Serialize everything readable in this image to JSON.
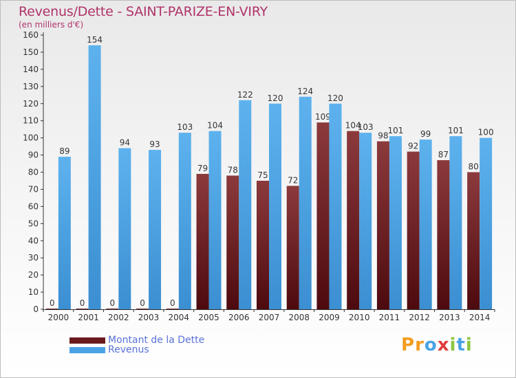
{
  "header": {
    "title": "Revenus/Dette - SAINT-PARIZE-EN-VIRY",
    "subtitle": "(en milliers d'€)"
  },
  "legend": {
    "items": [
      {
        "label": "Montant de la Dette",
        "color": "#6a1a1e"
      },
      {
        "label": "Revenus",
        "color": "#4aa3e6"
      }
    ]
  },
  "brand": {
    "text": "Proxiti",
    "letters": [
      {
        "ch": "P",
        "color": "#f39c1f"
      },
      {
        "ch": "r",
        "color": "#f39c1f"
      },
      {
        "ch": "o",
        "color": "#4aa3e6"
      },
      {
        "ch": "x",
        "color": "#e23c3c"
      },
      {
        "ch": "i",
        "color": "#8cc63f"
      },
      {
        "ch": "t",
        "color": "#4aa3e6"
      },
      {
        "ch": "i",
        "color": "#8cc63f"
      }
    ]
  },
  "chart_data": {
    "type": "bar",
    "categories": [
      "2000",
      "2001",
      "2002",
      "2003",
      "2004",
      "2005",
      "2006",
      "2007",
      "2008",
      "2009",
      "2010",
      "2011",
      "2012",
      "2013",
      "2014"
    ],
    "series": [
      {
        "name": "Montant de la Dette",
        "color": "#6a1a1e",
        "values": [
          0,
          0,
          0,
          0,
          0,
          79,
          78,
          75,
          72,
          109,
          104,
          98,
          92,
          87,
          80
        ]
      },
      {
        "name": "Revenus",
        "color": "#4aa3e6",
        "values": [
          89,
          154,
          94,
          93,
          103,
          104,
          122,
          120,
          124,
          120,
          103,
          101,
          99,
          101,
          100
        ]
      }
    ],
    "ylim": [
      0,
      160
    ],
    "yticks": [
      0,
      10,
      20,
      30,
      40,
      50,
      60,
      70,
      80,
      90,
      100,
      110,
      120,
      130,
      140,
      150,
      160
    ],
    "grid": false,
    "legend_position": "bottom-left"
  }
}
